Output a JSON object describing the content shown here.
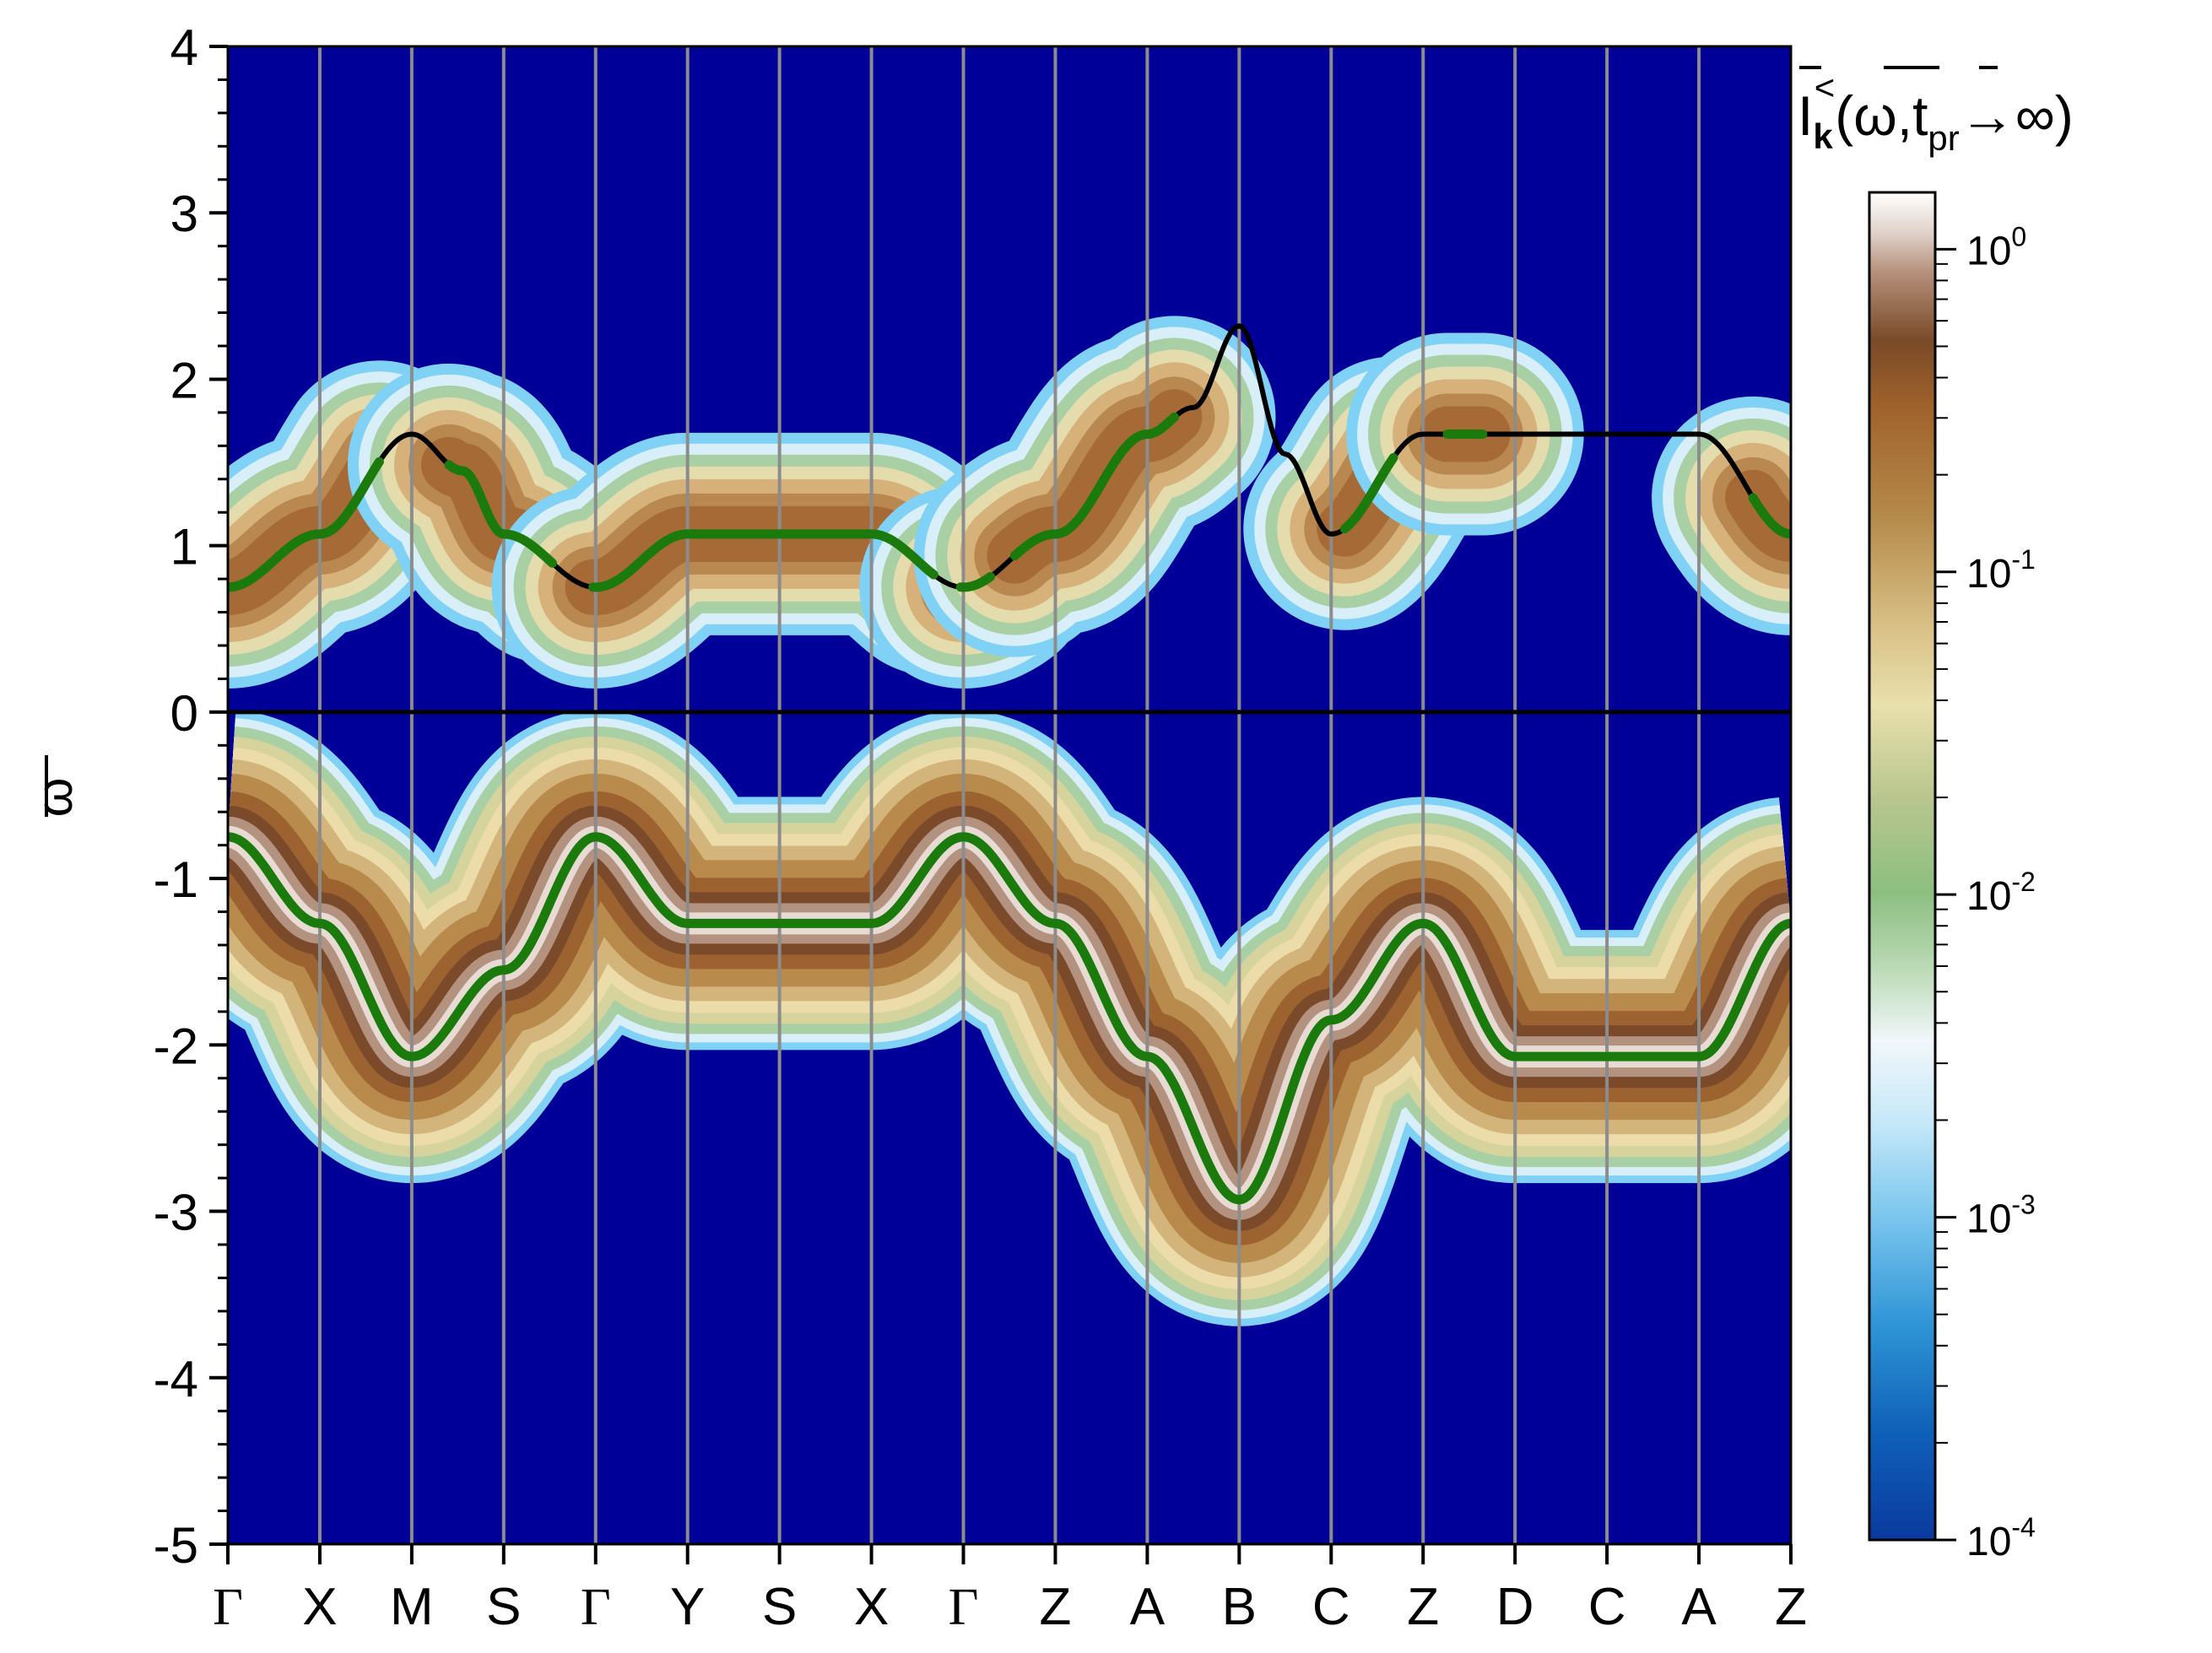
{
  "chart_data": {
    "type": "heatmap",
    "title": "",
    "xlabel": "",
    "ylabel": "ω",
    "ylim": [
      -5,
      4
    ],
    "yticks": [
      "-5",
      "-4",
      "-3",
      "-2",
      "-1",
      "0",
      "1",
      "2",
      "3",
      "4"
    ],
    "x_ticks": [
      "Γ",
      "X",
      "M",
      "S",
      "Γ",
      "Y",
      "S",
      "X",
      "Γ",
      "Z",
      "A",
      "B",
      "C",
      "Z",
      "D",
      "C",
      "A",
      "Z"
    ],
    "colorbar": {
      "label": "I<sub>k</sub><sup>&lt;</sup>(ω, t<sub>pr</sub>→∞)",
      "label_parts": {
        "base": "I",
        "sub": "k",
        "sup": "<",
        "args": "(ω,t",
        "args_sub": "pr",
        "args_end": "→∞)"
      },
      "scale": "log",
      "range": [
        0.0001,
        1.5
      ],
      "ticks": [
        {
          "base": "10",
          "exp": "0"
        },
        {
          "base": "10",
          "exp": "-1"
        },
        {
          "base": "10",
          "exp": "-2"
        },
        {
          "base": "10",
          "exp": "-3"
        },
        {
          "base": "10",
          "exp": "-4"
        }
      ]
    },
    "colors": {
      "background": "#000099",
      "bright_band_curve": "#1a7a0c",
      "dark_band_curve": "#000000",
      "gridline": "#8c8c8c",
      "zero_line": "#000000"
    },
    "series": [
      {
        "band": "upper",
        "x": [
          0,
          1,
          2,
          2.55,
          3,
          4,
          5,
          6,
          7,
          8,
          9,
          10,
          10.5,
          11,
          11.5,
          12,
          13,
          14,
          15,
          16,
          17
        ],
        "y": [
          0.75,
          1.07,
          1.67,
          1.45,
          1.07,
          0.75,
          1.07,
          1.07,
          1.07,
          0.75,
          1.07,
          1.67,
          1.83,
          2.32,
          1.55,
          1.07,
          1.67,
          1.67,
          1.67,
          1.67,
          1.07
        ]
      },
      {
        "band": "lower",
        "x": [
          0,
          1,
          2,
          3,
          4,
          5,
          6,
          7,
          8,
          9,
          10,
          11,
          12,
          13,
          14,
          15,
          16,
          17
        ],
        "y": [
          -0.75,
          -1.27,
          -2.07,
          -1.55,
          -0.75,
          -1.27,
          -1.27,
          -1.27,
          -0.75,
          -1.27,
          -2.07,
          -2.93,
          -1.85,
          -1.27,
          -2.07,
          -2.07,
          -2.07,
          -1.27
        ]
      }
    ]
  }
}
